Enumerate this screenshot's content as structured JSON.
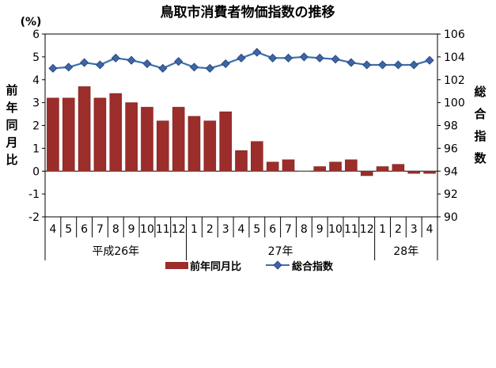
{
  "chart_data": {
    "type": "bar+line",
    "title": "鳥取市消費者物価指数の推移",
    "left_unit": "(%)",
    "left_axis_title": "前年同月比",
    "right_axis_title": "総合指数",
    "left_ylim": [
      -2,
      6
    ],
    "left_ticks": [
      "-2",
      "-1",
      "0",
      "1",
      "2",
      "3",
      "4",
      "5",
      "6"
    ],
    "right_ylim": [
      90,
      106
    ],
    "right_ticks": [
      "90",
      "92",
      "94",
      "96",
      "98",
      "100",
      "102",
      "104",
      "106"
    ],
    "categories": [
      "4",
      "5",
      "6",
      "7",
      "8",
      "9",
      "10",
      "11",
      "12",
      "1",
      "2",
      "3",
      "4",
      "5",
      "6",
      "7",
      "8",
      "9",
      "10",
      "11",
      "12",
      "1",
      "2",
      "3",
      "4"
    ],
    "year_groups": [
      {
        "label": "平成26年",
        "start": 0,
        "end": 8
      },
      {
        "label": "27年",
        "start": 9,
        "end": 20
      },
      {
        "label": "28年",
        "start": 21,
        "end": 24
      }
    ],
    "series": [
      {
        "name": "前年同月比",
        "type": "bar",
        "axis": "left",
        "color": "#9B2D2A",
        "values": [
          3.2,
          3.2,
          3.7,
          3.2,
          3.4,
          3.0,
          2.8,
          2.2,
          2.8,
          2.4,
          2.2,
          2.6,
          0.9,
          1.3,
          0.4,
          0.5,
          0.0,
          0.2,
          0.4,
          0.5,
          -0.2,
          0.2,
          0.3,
          -0.1,
          -0.1
        ]
      },
      {
        "name": "総合指数",
        "type": "line",
        "axis": "right",
        "color": "#3A6FB0",
        "values": [
          103.0,
          103.1,
          103.5,
          103.3,
          103.9,
          103.7,
          103.4,
          103.0,
          103.6,
          103.1,
          103.0,
          103.4,
          103.9,
          104.4,
          103.9,
          103.9,
          104.0,
          103.9,
          103.8,
          103.5,
          103.3,
          103.3,
          103.3,
          103.3,
          103.7
        ]
      }
    ],
    "legend": "bottom-center",
    "grid": false
  }
}
